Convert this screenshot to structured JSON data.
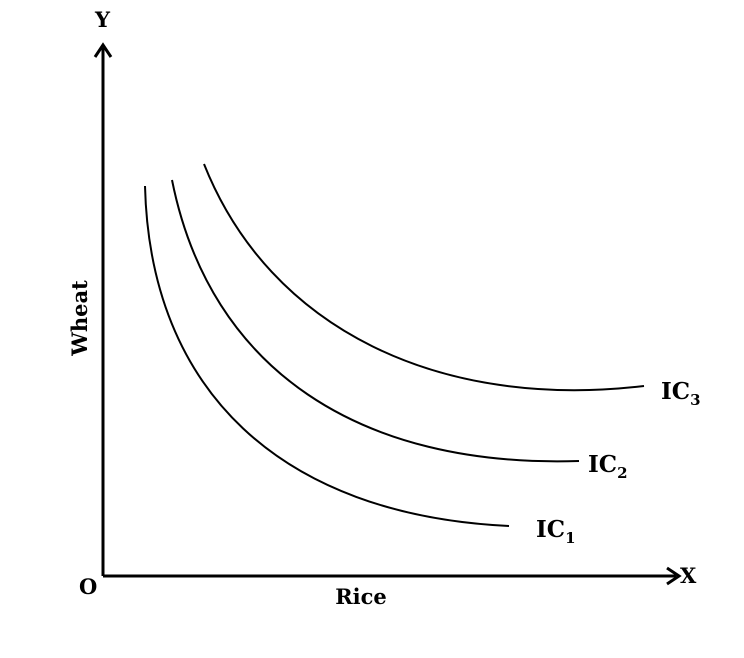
{
  "axes": {
    "y_letter": "Y",
    "x_letter": "X",
    "origin": "O",
    "x_title": "Rice",
    "y_title": "Wheat"
  },
  "curves": [
    {
      "main": "IC",
      "sub": "1"
    },
    {
      "main": "IC",
      "sub": "2"
    },
    {
      "main": "IC",
      "sub": "3"
    }
  ]
}
